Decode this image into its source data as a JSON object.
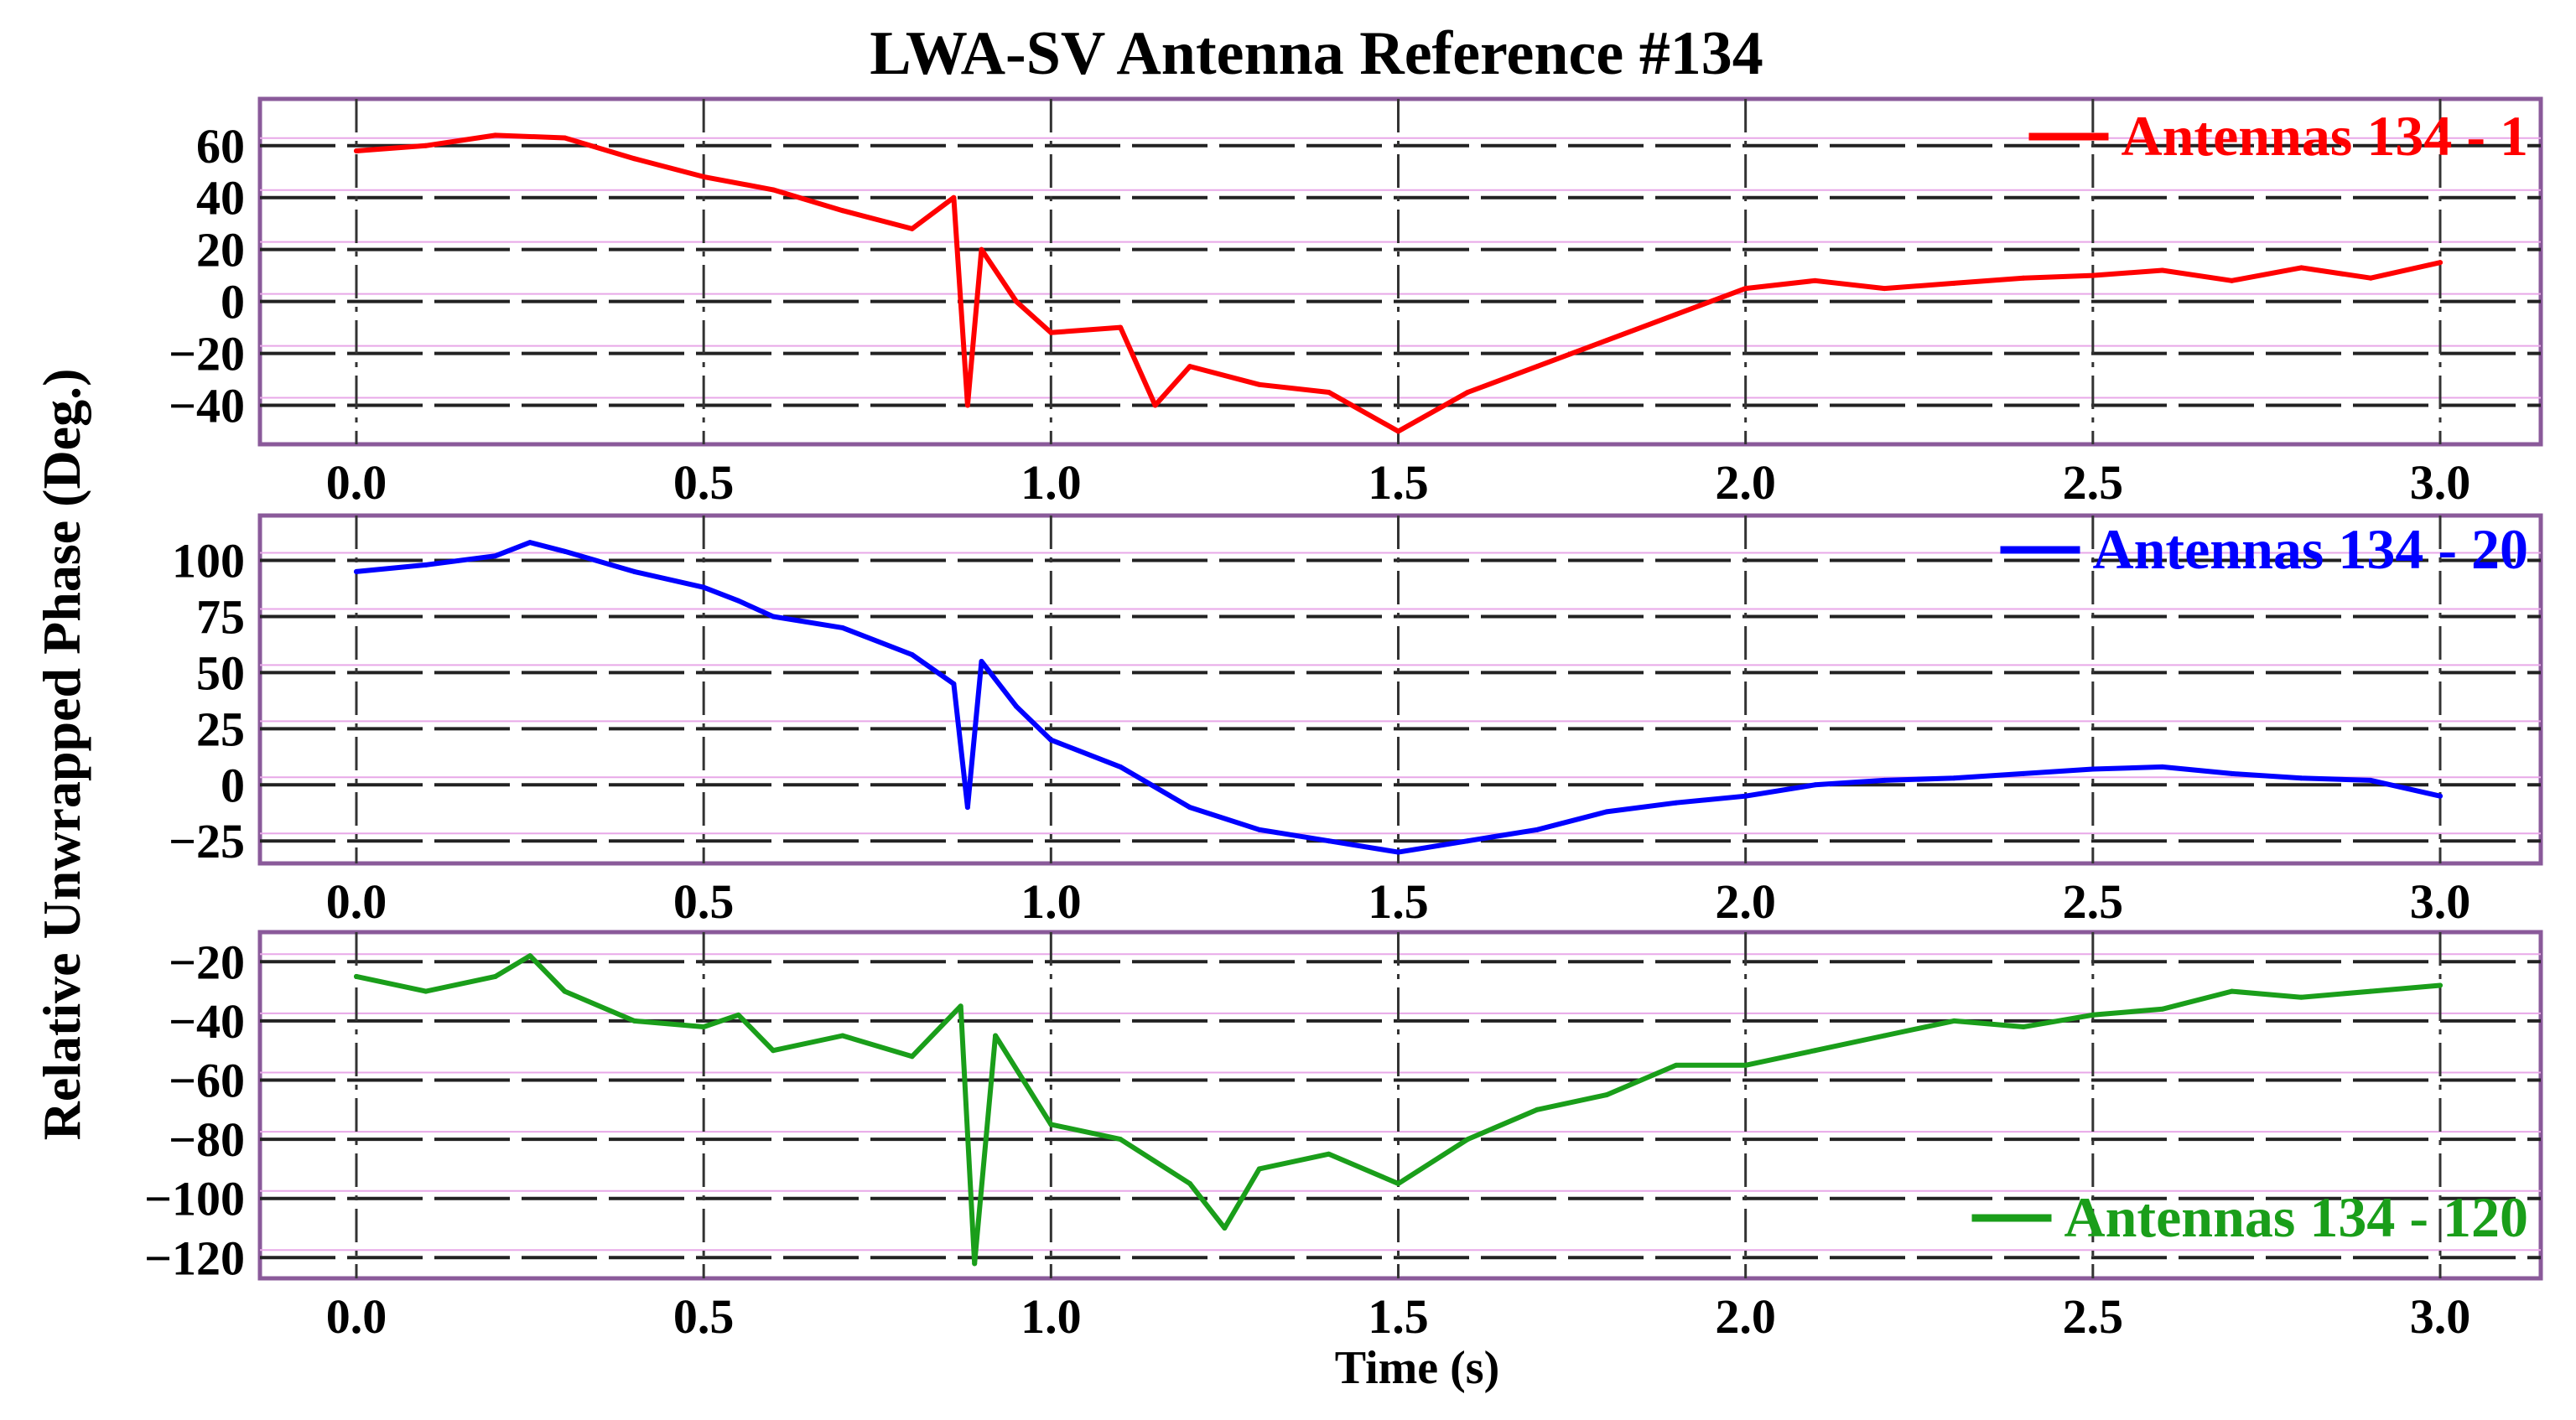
{
  "title": "LWA-SV Antenna Reference #134",
  "ylabel": "Relative Unwrapped Phase (Deg.)",
  "xlabel": "Time (s)",
  "chart_data": [
    {
      "type": "line",
      "legend": "Antennas 134 - 1",
      "legend_position": "top-right",
      "color": "#ff0000",
      "xlim": [
        0.0,
        3.0
      ],
      "ylim": [
        -55,
        78
      ],
      "xticks": [
        0.0,
        0.5,
        1.0,
        1.5,
        2.0,
        2.5,
        3.0
      ],
      "xtick_labels": [
        "0.0",
        "0.5",
        "1.0",
        "1.5",
        "2.0",
        "2.5",
        "3.0"
      ],
      "yticks": [
        60,
        40,
        20,
        0,
        -20,
        -40
      ],
      "ytick_labels": [
        "60",
        "40",
        "20",
        "0",
        "−20",
        "−40"
      ],
      "gridline_y": [
        60,
        40,
        20,
        0,
        -20,
        -40
      ],
      "x": [
        0.0,
        0.1,
        0.2,
        0.3,
        0.4,
        0.5,
        0.6,
        0.7,
        0.8,
        0.86,
        0.88,
        0.9,
        0.95,
        1.0,
        1.1,
        1.15,
        1.2,
        1.3,
        1.4,
        1.5,
        1.6,
        1.7,
        1.8,
        1.9,
        2.0,
        2.1,
        2.2,
        2.3,
        2.4,
        2.5,
        2.6,
        2.7,
        2.8,
        2.9,
        3.0
      ],
      "y": [
        58,
        60,
        64,
        63,
        55,
        48,
        43,
        35,
        28,
        40,
        -40,
        20,
        0,
        -12,
        -10,
        -40,
        -25,
        -32,
        -35,
        -50,
        -35,
        -25,
        -15,
        -5,
        5,
        8,
        5,
        7,
        9,
        10,
        12,
        8,
        13,
        9,
        15
      ]
    },
    {
      "type": "line",
      "legend": "Antennas 134 - 20",
      "legend_position": "top-right",
      "color": "#0000ff",
      "xlim": [
        0.0,
        3.0
      ],
      "ylim": [
        -35,
        120
      ],
      "xticks": [
        0.0,
        0.5,
        1.0,
        1.5,
        2.0,
        2.5,
        3.0
      ],
      "xtick_labels": [
        "0.0",
        "0.5",
        "1.0",
        "1.5",
        "2.0",
        "2.5",
        "3.0"
      ],
      "yticks": [
        100,
        75,
        50,
        25,
        0,
        -25
      ],
      "ytick_labels": [
        "100",
        "75",
        "50",
        "25",
        "0",
        "−25"
      ],
      "gridline_y": [
        100,
        75,
        50,
        25,
        0,
        -25
      ],
      "x": [
        0.0,
        0.1,
        0.2,
        0.25,
        0.3,
        0.4,
        0.5,
        0.55,
        0.6,
        0.7,
        0.8,
        0.86,
        0.88,
        0.9,
        0.95,
        1.0,
        1.1,
        1.2,
        1.3,
        1.4,
        1.5,
        1.6,
        1.7,
        1.8,
        1.9,
        2.0,
        2.1,
        2.2,
        2.3,
        2.4,
        2.5,
        2.6,
        2.7,
        2.8,
        2.9,
        3.0
      ],
      "y": [
        95,
        98,
        102,
        108,
        104,
        95,
        88,
        82,
        75,
        70,
        58,
        45,
        -10,
        55,
        35,
        20,
        8,
        -10,
        -20,
        -25,
        -30,
        -25,
        -20,
        -12,
        -8,
        -5,
        0,
        2,
        3,
        5,
        7,
        8,
        5,
        3,
        2,
        -5
      ]
    },
    {
      "type": "line",
      "legend": "Antennas 134 - 120",
      "legend_position": "bottom-right",
      "color": "#1a9e1a",
      "xlim": [
        0.0,
        3.0
      ],
      "ylim": [
        -127,
        -10
      ],
      "xticks": [
        0.0,
        0.5,
        1.0,
        1.5,
        2.0,
        2.5,
        3.0
      ],
      "xtick_labels": [
        "0.0",
        "0.5",
        "1.0",
        "1.5",
        "2.0",
        "2.5",
        "3.0"
      ],
      "yticks": [
        -20,
        -40,
        -60,
        -80,
        -100,
        -120
      ],
      "ytick_labels": [
        "−20",
        "−40",
        "−60",
        "−80",
        "−100",
        "−120"
      ],
      "gridline_y": [
        -20,
        -40,
        -60,
        -80,
        -100,
        -120
      ],
      "x": [
        0.0,
        0.1,
        0.2,
        0.25,
        0.3,
        0.4,
        0.5,
        0.55,
        0.6,
        0.7,
        0.8,
        0.87,
        0.89,
        0.92,
        1.0,
        1.1,
        1.2,
        1.25,
        1.3,
        1.4,
        1.5,
        1.6,
        1.7,
        1.8,
        1.9,
        2.0,
        2.1,
        2.2,
        2.3,
        2.4,
        2.5,
        2.6,
        2.7,
        2.8,
        2.9,
        3.0
      ],
      "y": [
        -25,
        -30,
        -25,
        -18,
        -30,
        -40,
        -42,
        -38,
        -50,
        -45,
        -52,
        -35,
        -122,
        -45,
        -75,
        -80,
        -95,
        -110,
        -90,
        -85,
        -95,
        -80,
        -70,
        -65,
        -55,
        -55,
        -50,
        -45,
        -40,
        -42,
        -38,
        -36,
        -30,
        -32,
        -30,
        -28
      ]
    }
  ]
}
